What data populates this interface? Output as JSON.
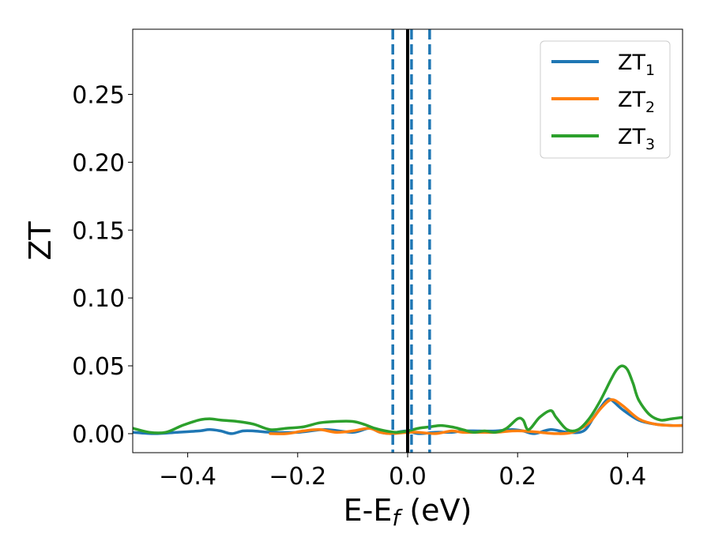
{
  "chart_data": {
    "type": "line",
    "xlabel": "E-E",
    "xlabel_sub": "f",
    "xlabel_unit": " (eV)",
    "ylabel": "ZT",
    "xlim": [
      -0.5,
      0.5
    ],
    "ylim": [
      -0.014,
      0.298
    ],
    "x_ticks": [
      -0.4,
      -0.2,
      0.0,
      0.2,
      0.4
    ],
    "x_tick_labels": [
      "−0.4",
      "−0.2",
      "0.0",
      "0.2",
      "0.4"
    ],
    "y_ticks": [
      0.0,
      0.05,
      0.1,
      0.15,
      0.2,
      0.25
    ],
    "y_tick_labels": [
      "0.00",
      "0.05",
      "0.10",
      "0.15",
      "0.20",
      "0.25"
    ],
    "grid": false,
    "legend_position": "top-right",
    "vertical_lines": [
      {
        "x": 0.0,
        "style": "solid",
        "color": "#000000"
      },
      {
        "x": -0.027,
        "style": "dashed",
        "color": "#1f77b4"
      },
      {
        "x": 0.007,
        "style": "dashed",
        "color": "#1f77b4"
      },
      {
        "x": 0.04,
        "style": "dashed",
        "color": "#1f77b4"
      }
    ],
    "series": [
      {
        "name": "ZT",
        "name_sub": "1",
        "color": "#1f77b4",
        "x": [
          -0.5,
          -0.46,
          -0.42,
          -0.38,
          -0.36,
          -0.34,
          -0.32,
          -0.3,
          -0.28,
          -0.25,
          -0.2,
          -0.15,
          -0.1,
          -0.07,
          -0.05,
          -0.03,
          -0.02,
          0.0,
          0.02,
          0.05,
          0.08,
          0.1,
          0.13,
          0.16,
          0.19,
          0.21,
          0.23,
          0.26,
          0.29,
          0.32,
          0.34,
          0.36,
          0.37,
          0.39,
          0.42,
          0.45,
          0.48,
          0.5
        ],
        "y": [
          0.001,
          0.0,
          0.001,
          0.002,
          0.003,
          0.002,
          0.0,
          0.002,
          0.002,
          0.001,
          0.001,
          0.003,
          0.001,
          0.004,
          0.001,
          0.0,
          0.001,
          0.002,
          0.0,
          0.001,
          0.001,
          0.002,
          0.002,
          0.002,
          0.003,
          0.002,
          0.0,
          0.003,
          0.001,
          0.002,
          0.013,
          0.024,
          0.025,
          0.018,
          0.01,
          0.007,
          0.006,
          0.006
        ]
      },
      {
        "name": "ZT",
        "name_sub": "2",
        "color": "#ff7f0e",
        "x": [
          -0.25,
          -0.22,
          -0.19,
          -0.16,
          -0.13,
          -0.1,
          -0.07,
          -0.05,
          -0.03,
          0.0,
          0.02,
          0.05,
          0.08,
          0.1,
          0.13,
          0.16,
          0.19,
          0.21,
          0.24,
          0.27,
          0.3,
          0.33,
          0.35,
          0.37,
          0.39,
          0.42,
          0.45,
          0.48,
          0.5
        ],
        "y": [
          0.0,
          0.0,
          0.002,
          0.003,
          0.001,
          0.002,
          0.004,
          0.001,
          0.0,
          0.001,
          0.001,
          0.0,
          0.002,
          0.001,
          0.001,
          0.001,
          0.002,
          0.002,
          0.001,
          0.0,
          0.001,
          0.008,
          0.018,
          0.025,
          0.021,
          0.011,
          0.007,
          0.006,
          0.006
        ]
      },
      {
        "name": "ZT",
        "name_sub": "3",
        "color": "#2ca02c",
        "x": [
          -0.5,
          -0.47,
          -0.44,
          -0.41,
          -0.38,
          -0.36,
          -0.34,
          -0.31,
          -0.28,
          -0.25,
          -0.22,
          -0.19,
          -0.16,
          -0.13,
          -0.1,
          -0.08,
          -0.06,
          -0.04,
          -0.02,
          0.0,
          0.02,
          0.04,
          0.06,
          0.08,
          0.1,
          0.12,
          0.14,
          0.16,
          0.18,
          0.2,
          0.21,
          0.22,
          0.24,
          0.26,
          0.27,
          0.29,
          0.31,
          0.33,
          0.35,
          0.37,
          0.38,
          0.39,
          0.4,
          0.41,
          0.42,
          0.44,
          0.46,
          0.48,
          0.5
        ],
        "y": [
          0.004,
          0.001,
          0.001,
          0.006,
          0.01,
          0.011,
          0.01,
          0.009,
          0.007,
          0.003,
          0.004,
          0.005,
          0.008,
          0.009,
          0.009,
          0.007,
          0.004,
          0.002,
          0.001,
          0.002,
          0.004,
          0.005,
          0.006,
          0.005,
          0.003,
          0.001,
          0.002,
          0.001,
          0.004,
          0.011,
          0.01,
          0.003,
          0.012,
          0.017,
          0.012,
          0.003,
          0.003,
          0.011,
          0.024,
          0.04,
          0.047,
          0.05,
          0.047,
          0.037,
          0.025,
          0.014,
          0.01,
          0.011,
          0.012
        ]
      }
    ]
  }
}
